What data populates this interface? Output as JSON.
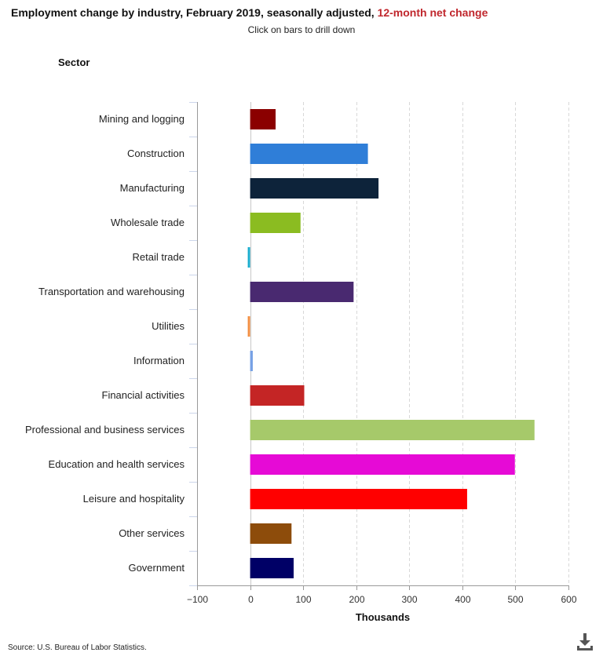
{
  "header": {
    "title": "Employment change by industry, February 2019, seasonally adjusted, ",
    "title_accent": "12-month net change",
    "subtitle": "Click on bars to drill down",
    "y_heading": "Sector"
  },
  "footer": {
    "source": "Source: U.S. Bureau of Labor Statistics."
  },
  "icons": {
    "download": "download-icon"
  },
  "chart_data": {
    "type": "bar",
    "orientation": "horizontal",
    "title": "Employment change by industry, February 2019, seasonally adjusted, 12-month net change",
    "xlabel": "Thousands",
    "ylabel": "Sector",
    "xlim": [
      -100,
      600
    ],
    "xticks": [
      -100,
      0,
      100,
      200,
      300,
      400,
      500,
      600
    ],
    "xtick_labels": [
      "−100",
      "0",
      "100",
      "200",
      "300",
      "400",
      "500",
      "600"
    ],
    "grid": "vertical dashed",
    "categories": [
      "Mining and logging",
      "Construction",
      "Manufacturing",
      "Wholesale trade",
      "Retail trade",
      "Transportation and warehousing",
      "Utilities",
      "Information",
      "Financial activities",
      "Professional and business services",
      "Education and health services",
      "Leisure and hospitality",
      "Other services",
      "Government"
    ],
    "values": [
      48,
      222,
      242,
      95,
      -4,
      195,
      -3,
      5,
      102,
      536,
      499,
      409,
      78,
      82
    ],
    "colors": [
      "#8b0000",
      "#2f7ed8",
      "#0d233a",
      "#8bbc21",
      "#1aadce",
      "#492970",
      "#f28f43",
      "#77a1e5",
      "#c42525",
      "#a6c96a",
      "#e60ad6",
      "#ff0000",
      "#8d4c0b",
      "#000066"
    ]
  }
}
